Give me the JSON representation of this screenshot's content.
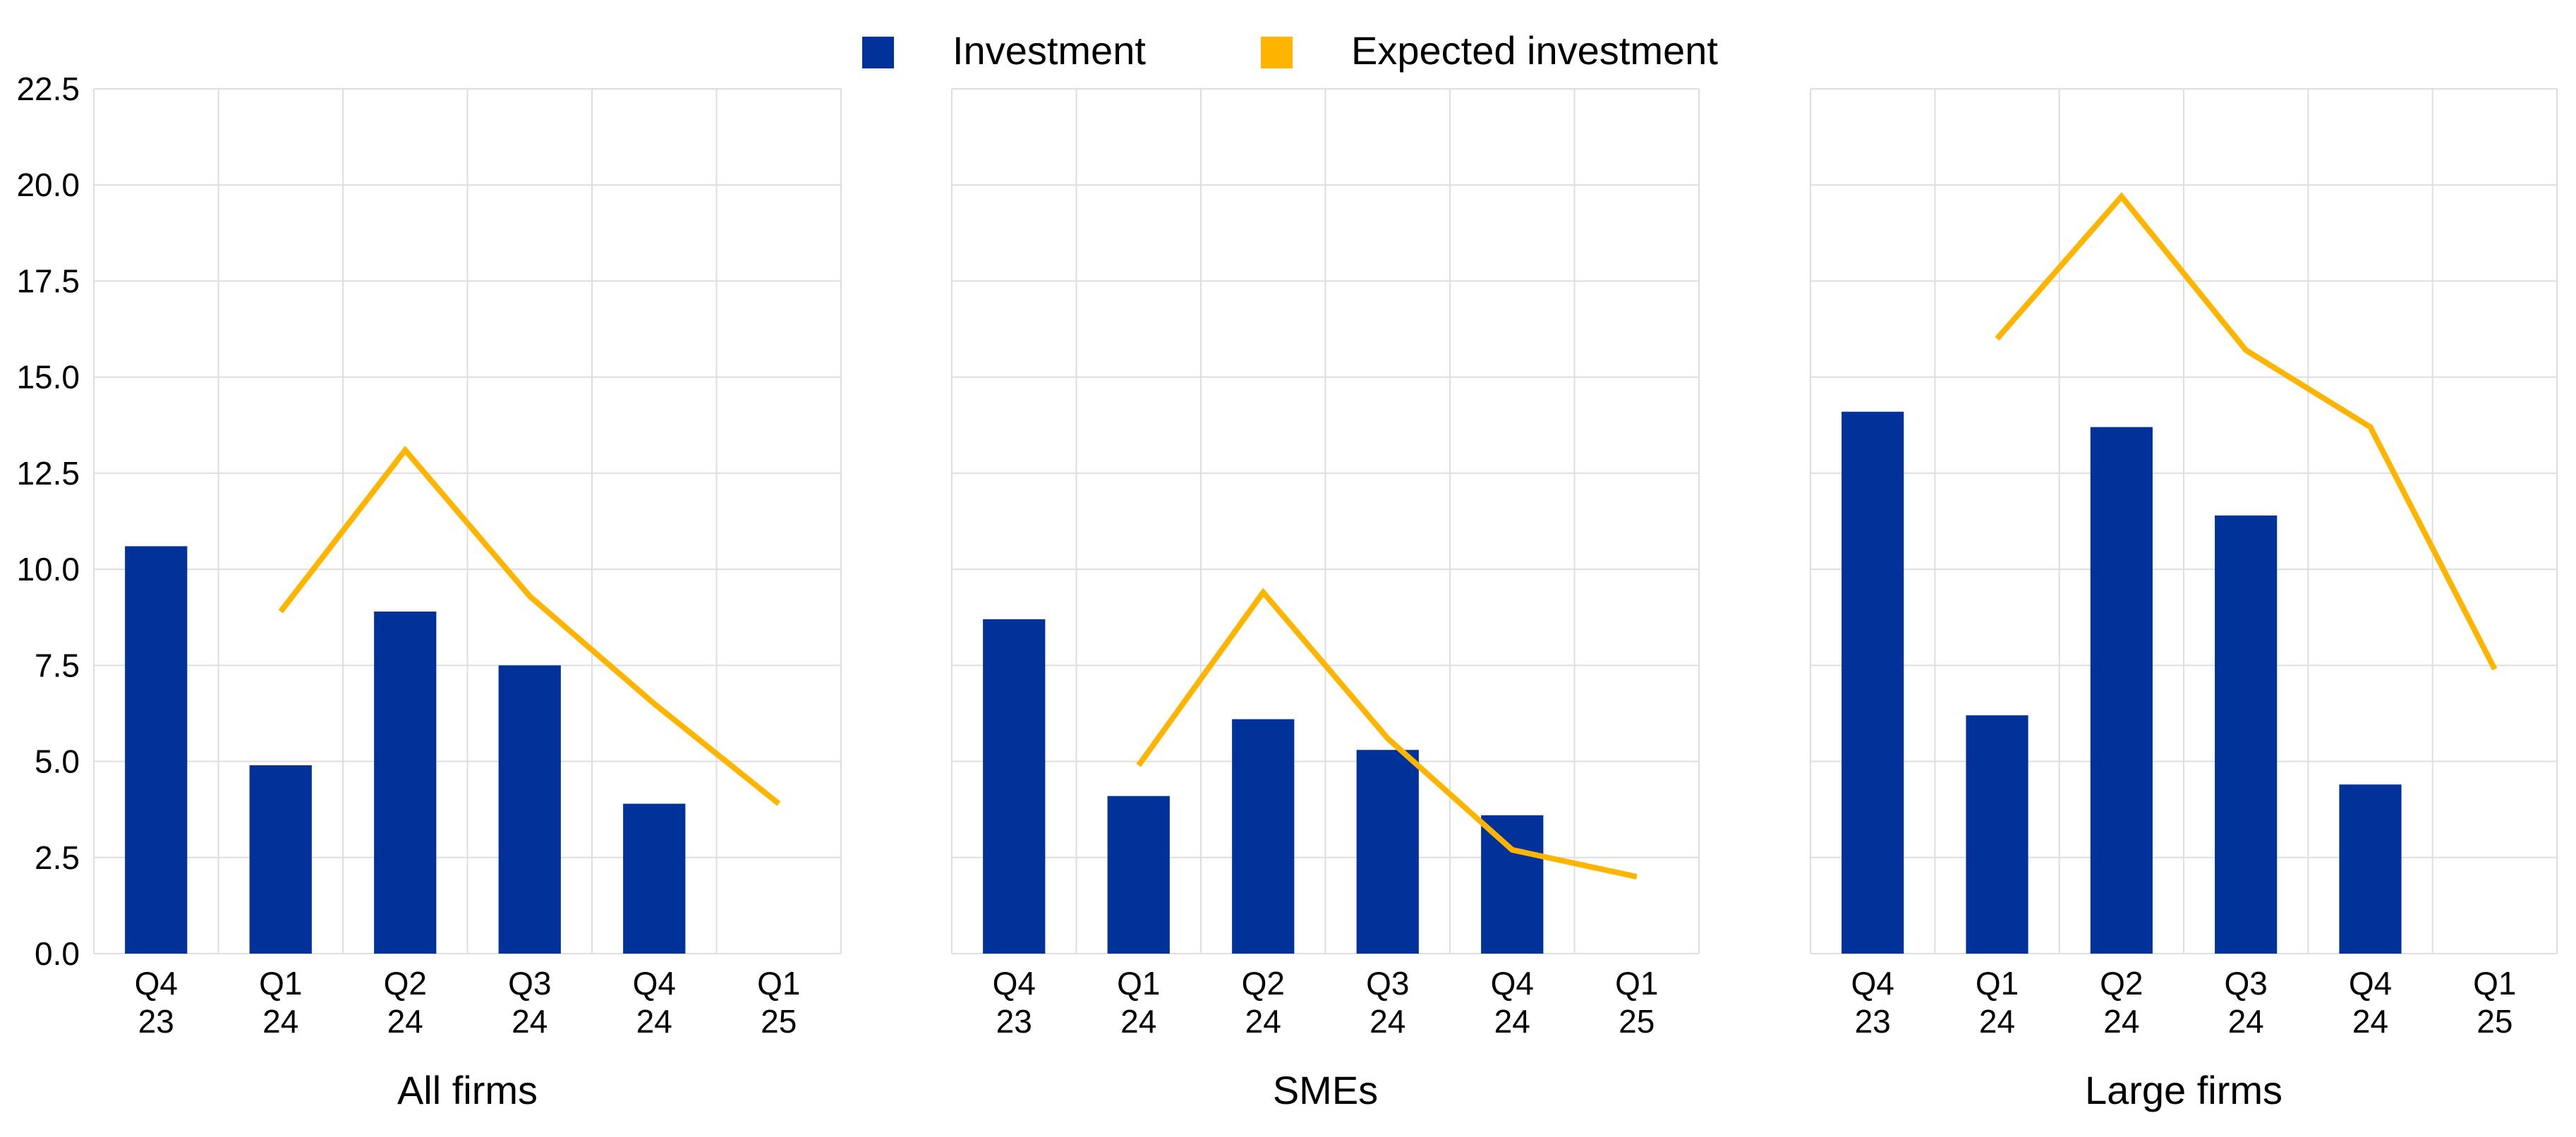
{
  "legend": {
    "items": [
      {
        "label": "Investment",
        "color": "#003299"
      },
      {
        "label": "Expected investment",
        "color": "#FFB400"
      }
    ]
  },
  "chart_data": [
    {
      "type": "bar",
      "title": "All firms",
      "categories": [
        "Q4\n23",
        "Q1\n24",
        "Q2\n24",
        "Q3\n24",
        "Q4\n24",
        "Q1\n25"
      ],
      "series": [
        {
          "name": "Investment",
          "type": "bar",
          "color": "#003299",
          "values": [
            10.6,
            4.9,
            8.9,
            7.5,
            3.9,
            null
          ]
        },
        {
          "name": "Expected investment",
          "type": "line",
          "color": "#FFB400",
          "values": [
            null,
            8.9,
            13.1,
            9.3,
            6.5,
            3.9
          ]
        }
      ],
      "ylim": [
        0,
        22.5
      ],
      "yticks": [
        "0.0",
        "2.5",
        "5.0",
        "7.5",
        "10.0",
        "12.5",
        "15.0",
        "17.5",
        "20.0",
        "22.5"
      ],
      "grid": true,
      "legend": "top-center"
    },
    {
      "type": "bar",
      "title": "SMEs",
      "categories": [
        "Q4\n23",
        "Q1\n24",
        "Q2\n24",
        "Q3\n24",
        "Q4\n24",
        "Q1\n25"
      ],
      "series": [
        {
          "name": "Investment",
          "type": "bar",
          "color": "#003299",
          "values": [
            8.7,
            4.1,
            6.1,
            5.3,
            3.6,
            null
          ]
        },
        {
          "name": "Expected investment",
          "type": "line",
          "color": "#FFB400",
          "values": [
            null,
            4.9,
            9.4,
            5.6,
            2.7,
            2.0
          ]
        }
      ],
      "ylim": [
        0,
        22.5
      ],
      "grid": true
    },
    {
      "type": "bar",
      "title": "Large firms",
      "categories": [
        "Q4\n23",
        "Q1\n24",
        "Q2\n24",
        "Q3\n24",
        "Q4\n24",
        "Q1\n25"
      ],
      "series": [
        {
          "name": "Investment",
          "type": "bar",
          "color": "#003299",
          "values": [
            14.1,
            6.2,
            13.7,
            11.4,
            4.4,
            null
          ]
        },
        {
          "name": "Expected investment",
          "type": "line",
          "color": "#FFB400",
          "values": [
            null,
            16.0,
            19.7,
            15.7,
            13.7,
            7.4
          ]
        }
      ],
      "ylim": [
        0,
        22.5
      ],
      "grid": true
    }
  ]
}
